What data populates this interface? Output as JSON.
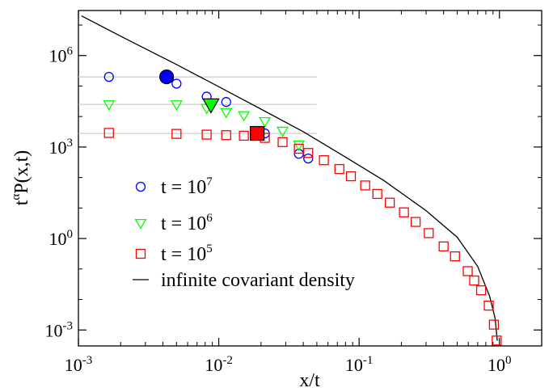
{
  "chart_data": {
    "type": "scatter",
    "xlabel": "x/t",
    "ylabel": {
      "base": "t",
      "sup": "α",
      "rest": "P(x,t)"
    },
    "xscale": "log",
    "yscale": "log",
    "xlim": [
      0.001,
      2.0
    ],
    "ylim": [
      0.0003,
      30000000
    ],
    "xticks": [
      {
        "value": 0.001,
        "base": "10",
        "exp": "-3"
      },
      {
        "value": 0.01,
        "base": "10",
        "exp": "-2"
      },
      {
        "value": 0.1,
        "base": "10",
        "exp": "-1"
      },
      {
        "value": 1,
        "base": "10",
        "exp": "0"
      }
    ],
    "yticks": [
      {
        "value": 0.001,
        "base": "10",
        "exp": "-3"
      },
      {
        "value": 1,
        "base": "10",
        "exp": "0"
      },
      {
        "value": 1000,
        "base": "10",
        "exp": "3"
      },
      {
        "value": 1000000,
        "base": "10",
        "exp": "6"
      }
    ],
    "grid": false,
    "legend_position": "lower-left",
    "series": [
      {
        "name": {
          "prefix": "t = 10",
          "exp": "7"
        },
        "marker": "circle",
        "color": "#0000ff",
        "x": [
          0.00165,
          0.005,
          0.0082,
          0.0113,
          0.0213,
          0.0372,
          0.0434
        ],
        "y": [
          200000,
          120000,
          45000,
          30000,
          2800,
          600,
          420
        ],
        "plateau": 200000,
        "highlight": {
          "x": 0.00425,
          "y": 200000
        }
      },
      {
        "name": {
          "prefix": "t = 10",
          "exp": "6"
        },
        "marker": "triangle-down",
        "color": "#00ff00",
        "x": [
          0.00165,
          0.005,
          0.0082,
          0.0113,
          0.0151,
          0.0213,
          0.0285,
          0.0372
        ],
        "y": [
          25000,
          25000,
          19000,
          14000,
          11000,
          7000,
          3400,
          1200
        ],
        "plateau": 25000,
        "highlight": {
          "x": 0.0088,
          "y": 25000
        }
      },
      {
        "name": {
          "prefix": "t = 10",
          "exp": "5"
        },
        "marker": "square",
        "color": "#ff0000",
        "x": [
          0.00165,
          0.005,
          0.0082,
          0.0113,
          0.0151,
          0.0213,
          0.0285,
          0.0372,
          0.0434,
          0.0561,
          0.0724,
          0.0874,
          0.1105,
          0.1349,
          0.1655,
          0.2088,
          0.2529,
          0.3136,
          0.4002,
          0.4822,
          0.5943,
          0.6605,
          0.7399,
          0.8391,
          0.9128,
          0.9562
        ],
        "y": [
          2900,
          2700,
          2550,
          2450,
          2350,
          2000,
          1450,
          880,
          640,
          370,
          190,
          110,
          55,
          29,
          15,
          7.2,
          3.5,
          1.5,
          0.55,
          0.26,
          0.085,
          0.042,
          0.02,
          0.0063,
          0.0015,
          0.00045
        ],
        "plateau": 2800,
        "highlight": {
          "x": 0.0188,
          "y": 2800
        }
      },
      {
        "name": {
          "prefix": "infinite covariant density",
          "exp": ""
        },
        "marker": "line",
        "color": "#000000",
        "curve": [
          [
            0.00105,
            20000000
          ],
          [
            0.002,
            4300000
          ],
          [
            0.005,
            510000
          ],
          [
            0.01,
            95000
          ],
          [
            0.02,
            17500
          ],
          [
            0.04,
            3200
          ],
          [
            0.08,
            470
          ],
          [
            0.15,
            80
          ],
          [
            0.3,
            8.2
          ],
          [
            0.5,
            1.1
          ],
          [
            0.7,
            0.12
          ],
          [
            0.85,
            0.013
          ],
          [
            0.93,
            0.0025
          ],
          [
            0.965,
            0.00045
          ]
        ]
      }
    ]
  }
}
